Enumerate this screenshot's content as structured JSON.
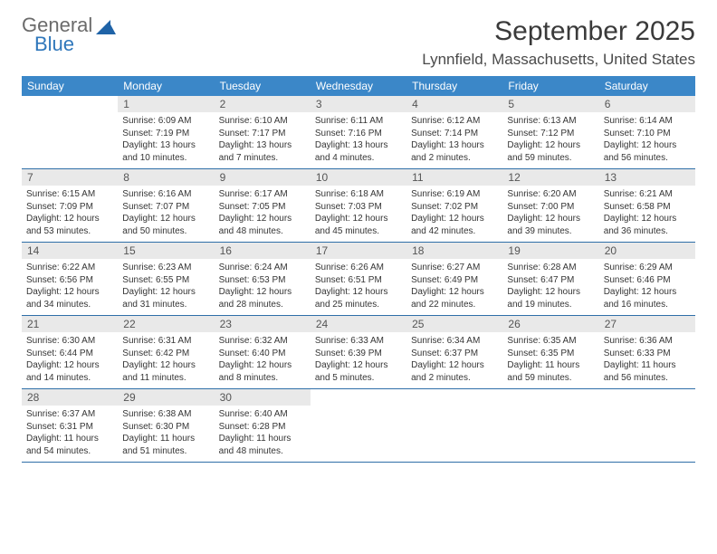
{
  "brand": {
    "line1": "General",
    "line2": "Blue",
    "icon_color": "#1f63a7",
    "text_gray": "#6b6b6b"
  },
  "header": {
    "title": "September 2025",
    "location": "Lynnfield, Massachusetts, United States"
  },
  "colors": {
    "header_bg": "#3b87c8",
    "row_border": "#2f6fa8",
    "daynum_bg": "#e9e9e9",
    "text": "#353535"
  },
  "days_of_week": [
    "Sunday",
    "Monday",
    "Tuesday",
    "Wednesday",
    "Thursday",
    "Friday",
    "Saturday"
  ],
  "weeks": [
    [
      null,
      {
        "n": "1",
        "sr": "Sunrise: 6:09 AM",
        "ss": "Sunset: 7:19 PM",
        "dl": "Daylight: 13 hours and 10 minutes."
      },
      {
        "n": "2",
        "sr": "Sunrise: 6:10 AM",
        "ss": "Sunset: 7:17 PM",
        "dl": "Daylight: 13 hours and 7 minutes."
      },
      {
        "n": "3",
        "sr": "Sunrise: 6:11 AM",
        "ss": "Sunset: 7:16 PM",
        "dl": "Daylight: 13 hours and 4 minutes."
      },
      {
        "n": "4",
        "sr": "Sunrise: 6:12 AM",
        "ss": "Sunset: 7:14 PM",
        "dl": "Daylight: 13 hours and 2 minutes."
      },
      {
        "n": "5",
        "sr": "Sunrise: 6:13 AM",
        "ss": "Sunset: 7:12 PM",
        "dl": "Daylight: 12 hours and 59 minutes."
      },
      {
        "n": "6",
        "sr": "Sunrise: 6:14 AM",
        "ss": "Sunset: 7:10 PM",
        "dl": "Daylight: 12 hours and 56 minutes."
      }
    ],
    [
      {
        "n": "7",
        "sr": "Sunrise: 6:15 AM",
        "ss": "Sunset: 7:09 PM",
        "dl": "Daylight: 12 hours and 53 minutes."
      },
      {
        "n": "8",
        "sr": "Sunrise: 6:16 AM",
        "ss": "Sunset: 7:07 PM",
        "dl": "Daylight: 12 hours and 50 minutes."
      },
      {
        "n": "9",
        "sr": "Sunrise: 6:17 AM",
        "ss": "Sunset: 7:05 PM",
        "dl": "Daylight: 12 hours and 48 minutes."
      },
      {
        "n": "10",
        "sr": "Sunrise: 6:18 AM",
        "ss": "Sunset: 7:03 PM",
        "dl": "Daylight: 12 hours and 45 minutes."
      },
      {
        "n": "11",
        "sr": "Sunrise: 6:19 AM",
        "ss": "Sunset: 7:02 PM",
        "dl": "Daylight: 12 hours and 42 minutes."
      },
      {
        "n": "12",
        "sr": "Sunrise: 6:20 AM",
        "ss": "Sunset: 7:00 PM",
        "dl": "Daylight: 12 hours and 39 minutes."
      },
      {
        "n": "13",
        "sr": "Sunrise: 6:21 AM",
        "ss": "Sunset: 6:58 PM",
        "dl": "Daylight: 12 hours and 36 minutes."
      }
    ],
    [
      {
        "n": "14",
        "sr": "Sunrise: 6:22 AM",
        "ss": "Sunset: 6:56 PM",
        "dl": "Daylight: 12 hours and 34 minutes."
      },
      {
        "n": "15",
        "sr": "Sunrise: 6:23 AM",
        "ss": "Sunset: 6:55 PM",
        "dl": "Daylight: 12 hours and 31 minutes."
      },
      {
        "n": "16",
        "sr": "Sunrise: 6:24 AM",
        "ss": "Sunset: 6:53 PM",
        "dl": "Daylight: 12 hours and 28 minutes."
      },
      {
        "n": "17",
        "sr": "Sunrise: 6:26 AM",
        "ss": "Sunset: 6:51 PM",
        "dl": "Daylight: 12 hours and 25 minutes."
      },
      {
        "n": "18",
        "sr": "Sunrise: 6:27 AM",
        "ss": "Sunset: 6:49 PM",
        "dl": "Daylight: 12 hours and 22 minutes."
      },
      {
        "n": "19",
        "sr": "Sunrise: 6:28 AM",
        "ss": "Sunset: 6:47 PM",
        "dl": "Daylight: 12 hours and 19 minutes."
      },
      {
        "n": "20",
        "sr": "Sunrise: 6:29 AM",
        "ss": "Sunset: 6:46 PM",
        "dl": "Daylight: 12 hours and 16 minutes."
      }
    ],
    [
      {
        "n": "21",
        "sr": "Sunrise: 6:30 AM",
        "ss": "Sunset: 6:44 PM",
        "dl": "Daylight: 12 hours and 14 minutes."
      },
      {
        "n": "22",
        "sr": "Sunrise: 6:31 AM",
        "ss": "Sunset: 6:42 PM",
        "dl": "Daylight: 12 hours and 11 minutes."
      },
      {
        "n": "23",
        "sr": "Sunrise: 6:32 AM",
        "ss": "Sunset: 6:40 PM",
        "dl": "Daylight: 12 hours and 8 minutes."
      },
      {
        "n": "24",
        "sr": "Sunrise: 6:33 AM",
        "ss": "Sunset: 6:39 PM",
        "dl": "Daylight: 12 hours and 5 minutes."
      },
      {
        "n": "25",
        "sr": "Sunrise: 6:34 AM",
        "ss": "Sunset: 6:37 PM",
        "dl": "Daylight: 12 hours and 2 minutes."
      },
      {
        "n": "26",
        "sr": "Sunrise: 6:35 AM",
        "ss": "Sunset: 6:35 PM",
        "dl": "Daylight: 11 hours and 59 minutes."
      },
      {
        "n": "27",
        "sr": "Sunrise: 6:36 AM",
        "ss": "Sunset: 6:33 PM",
        "dl": "Daylight: 11 hours and 56 minutes."
      }
    ],
    [
      {
        "n": "28",
        "sr": "Sunrise: 6:37 AM",
        "ss": "Sunset: 6:31 PM",
        "dl": "Daylight: 11 hours and 54 minutes."
      },
      {
        "n": "29",
        "sr": "Sunrise: 6:38 AM",
        "ss": "Sunset: 6:30 PM",
        "dl": "Daylight: 11 hours and 51 minutes."
      },
      {
        "n": "30",
        "sr": "Sunrise: 6:40 AM",
        "ss": "Sunset: 6:28 PM",
        "dl": "Daylight: 11 hours and 48 minutes."
      },
      null,
      null,
      null,
      null
    ]
  ]
}
